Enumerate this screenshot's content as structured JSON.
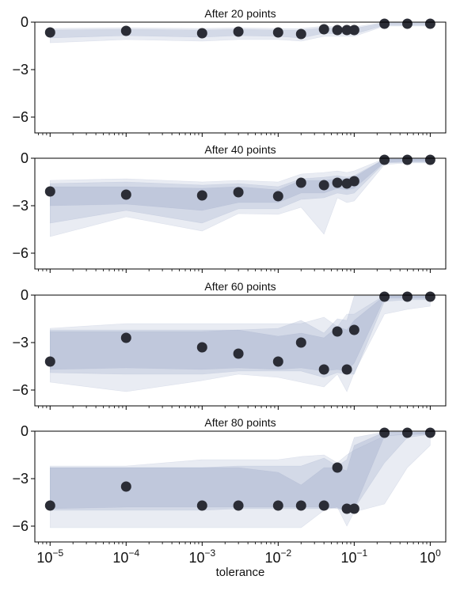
{
  "colors": {
    "band": "#9aa8c8",
    "point": "#2b2d36",
    "axis": "#000000"
  },
  "chart_data": [
    {
      "type": "scatter",
      "title": "After 20 points",
      "xlabel": "",
      "ylabel": "",
      "xscale": "log",
      "xlim": [
        6.3e-06,
        1.6
      ],
      "ylim": [
        -7,
        0
      ],
      "yticks": [
        0,
        -3,
        -6
      ],
      "ytick_labels": [
        "0",
        "−3",
        "−6"
      ],
      "x": [
        1e-05,
        0.0001,
        0.001,
        0.003,
        0.01,
        0.02,
        0.04,
        0.06,
        0.08,
        0.1,
        0.25,
        0.5,
        1.0
      ],
      "y": [
        -0.65,
        -0.55,
        -0.7,
        -0.6,
        -0.65,
        -0.75,
        -0.45,
        -0.5,
        -0.5,
        -0.5,
        -0.1,
        -0.1,
        -0.1
      ],
      "bands": [
        {
          "upper": [
            -0.4,
            -0.35,
            -0.4,
            -0.35,
            -0.4,
            -0.4,
            -0.25,
            -0.3,
            -0.3,
            -0.3,
            -0.02,
            -0.02,
            -0.02
          ],
          "lower": [
            -1.3,
            -1.1,
            -1.2,
            -1.1,
            -1.1,
            -1.2,
            -0.9,
            -0.9,
            -0.9,
            -0.9,
            -0.25,
            -0.25,
            -0.25
          ]
        },
        {
          "upper": [
            -0.5,
            -0.45,
            -0.5,
            -0.45,
            -0.5,
            -0.5,
            -0.35,
            -0.4,
            -0.4,
            -0.4,
            -0.05,
            -0.05,
            -0.05
          ],
          "lower": [
            -1.0,
            -0.85,
            -0.95,
            -0.85,
            -0.9,
            -1.0,
            -0.7,
            -0.75,
            -0.75,
            -0.75,
            -0.2,
            -0.2,
            -0.2
          ]
        }
      ]
    },
    {
      "type": "scatter",
      "title": "After 40 points",
      "xlabel": "",
      "ylabel": "",
      "xscale": "log",
      "xlim": [
        6.3e-06,
        1.6
      ],
      "ylim": [
        -7,
        0
      ],
      "yticks": [
        0,
        -3,
        -6
      ],
      "ytick_labels": [
        "0",
        "−3",
        "−6"
      ],
      "x": [
        1e-05,
        0.0001,
        0.001,
        0.003,
        0.01,
        0.02,
        0.04,
        0.06,
        0.08,
        0.1,
        0.25,
        0.5,
        1.0
      ],
      "y": [
        -2.1,
        -2.3,
        -2.35,
        -2.15,
        -2.4,
        -1.55,
        -1.7,
        -1.55,
        -1.6,
        -1.45,
        -0.1,
        -0.1,
        -0.1
      ],
      "bands": [
        {
          "upper": [
            -1.4,
            -1.3,
            -1.5,
            -1.4,
            -1.5,
            -1.0,
            -0.9,
            -0.8,
            -0.9,
            -0.8,
            -0.02,
            -0.02,
            -0.02
          ],
          "lower": [
            -4.95,
            -3.7,
            -4.6,
            -3.5,
            -3.55,
            -3.1,
            -4.8,
            -2.5,
            -2.8,
            -2.7,
            -0.4,
            -0.3,
            -0.3
          ]
        },
        {
          "upper": [
            -1.6,
            -1.5,
            -1.7,
            -1.6,
            -1.8,
            -1.3,
            -1.2,
            -1.1,
            -1.2,
            -1.1,
            -0.05,
            -0.05,
            -0.05
          ],
          "lower": [
            -4.1,
            -3.3,
            -4.1,
            -3.2,
            -3.2,
            -2.6,
            -2.5,
            -2.2,
            -2.3,
            -2.2,
            -0.3,
            -0.25,
            -0.25
          ]
        },
        {
          "upper": [
            -1.8,
            -1.8,
            -1.9,
            -1.8,
            -2.0,
            -1.4,
            -1.4,
            -1.3,
            -1.3,
            -1.2,
            -0.05,
            -0.05,
            -0.05
          ],
          "lower": [
            -3.0,
            -2.9,
            -3.3,
            -2.8,
            -2.8,
            -2.2,
            -2.2,
            -1.9,
            -2.0,
            -1.9,
            -0.25,
            -0.2,
            -0.2
          ]
        }
      ]
    },
    {
      "type": "scatter",
      "title": "After 60 points",
      "xlabel": "",
      "ylabel": "",
      "xscale": "log",
      "xlim": [
        6.3e-06,
        1.6
      ],
      "ylim": [
        -7,
        0
      ],
      "yticks": [
        0,
        -3,
        -6
      ],
      "ytick_labels": [
        "0",
        "−3",
        "−6"
      ],
      "x": [
        1e-05,
        0.0001,
        0.001,
        0.003,
        0.01,
        0.02,
        0.04,
        0.06,
        0.08,
        0.1,
        0.25,
        0.5,
        1.0
      ],
      "y": [
        -4.2,
        -2.7,
        -3.3,
        -3.7,
        -4.2,
        -3.0,
        -4.7,
        -2.3,
        -4.7,
        -2.2,
        -0.1,
        -0.1,
        -0.1
      ],
      "bands": [
        {
          "upper": [
            -2.1,
            -1.8,
            -1.8,
            -1.8,
            -1.8,
            -1.8,
            -1.4,
            -2.0,
            -1.2,
            -1.2,
            -0.02,
            -0.02,
            -0.02
          ],
          "lower": [
            -5.5,
            -6.1,
            -5.4,
            -5.0,
            -5.2,
            -5.5,
            -5.8,
            -5.0,
            -6.1,
            -4.9,
            -1.2,
            -0.9,
            -0.7
          ]
        },
        {
          "upper": [
            -2.2,
            -2.2,
            -2.2,
            -2.2,
            -2.1,
            -1.6,
            -2.4,
            -1.5,
            -1.6,
            -0.05,
            -0.05,
            -0.05,
            -0.05
          ],
          "lower": [
            -4.9,
            -5.0,
            -5.0,
            -4.8,
            -4.8,
            -4.8,
            -5.2,
            -4.9,
            -5.0,
            -5.0,
            -0.4,
            -0.3,
            -0.3
          ]
        },
        {
          "upper": [
            -2.3,
            -2.3,
            -2.3,
            -2.2,
            -2.6,
            -2.4,
            -2.7,
            -2.0,
            -2.2,
            -1.6,
            -0.05,
            -0.05,
            -0.05
          ],
          "lower": [
            -4.7,
            -4.6,
            -4.7,
            -4.6,
            -4.7,
            -4.6,
            -4.8,
            -4.7,
            -4.8,
            -4.3,
            -0.2,
            -0.2,
            -0.2
          ]
        }
      ]
    },
    {
      "type": "scatter",
      "title": "After 80 points",
      "xlabel": "tolerance",
      "ylabel": "",
      "xscale": "log",
      "xlim": [
        6.3e-06,
        1.6
      ],
      "ylim": [
        -7,
        0
      ],
      "yticks": [
        0,
        -3,
        -6
      ],
      "ytick_labels": [
        "0",
        "−3",
        "−6"
      ],
      "xticks": [
        1e-05,
        0.0001,
        0.001,
        0.01,
        0.1,
        1.0
      ],
      "xtick_labels": [
        {
          "base": "10",
          "exp": "−5"
        },
        {
          "base": "10",
          "exp": "−4"
        },
        {
          "base": "10",
          "exp": "−3"
        },
        {
          "base": "10",
          "exp": "−2"
        },
        {
          "base": "10",
          "exp": "−1"
        },
        {
          "base": "10",
          "exp": "0"
        }
      ],
      "x": [
        1e-05,
        0.0001,
        0.001,
        0.003,
        0.01,
        0.02,
        0.04,
        0.06,
        0.08,
        0.1,
        0.25,
        0.5,
        1.0
      ],
      "y": [
        -4.7,
        -3.5,
        -4.7,
        -4.7,
        -4.7,
        -4.7,
        -4.7,
        -2.3,
        -4.9,
        -4.9,
        -0.1,
        -0.1,
        -0.1
      ],
      "bands": [
        {
          "upper": [
            -2.2,
            -2.2,
            -1.8,
            -1.8,
            -1.8,
            -1.6,
            -1.5,
            -2.0,
            -1.5,
            -1.2,
            -0.3,
            -0.2,
            -0.05
          ],
          "lower": [
            -6.1,
            -6.1,
            -6.1,
            -6.1,
            -6.1,
            -6.1,
            -5.0,
            -4.8,
            -6.0,
            -5.1,
            -4.6,
            -2.3,
            -0.9
          ]
        },
        {
          "upper": [
            -2.3,
            -2.3,
            -2.3,
            -2.2,
            -2.2,
            -2.2,
            -1.7,
            -2.2,
            -1.8,
            -0.4,
            -0.05,
            -0.05,
            -0.05
          ],
          "lower": [
            -5.0,
            -5.0,
            -5.0,
            -4.9,
            -4.9,
            -4.9,
            -4.9,
            -4.8,
            -5.1,
            -4.9,
            -2.0,
            -0.4,
            -0.2
          ]
        },
        {
          "upper": [
            -2.3,
            -2.3,
            -2.3,
            -2.3,
            -2.6,
            -3.4,
            -2.3,
            -2.3,
            -2.5,
            -0.9,
            -0.05,
            -0.05,
            -0.05
          ],
          "lower": [
            -4.9,
            -4.8,
            -4.8,
            -4.8,
            -4.8,
            -4.8,
            -4.8,
            -4.9,
            -5.0,
            -4.9,
            -0.3,
            -0.2,
            -0.2
          ]
        }
      ]
    }
  ]
}
